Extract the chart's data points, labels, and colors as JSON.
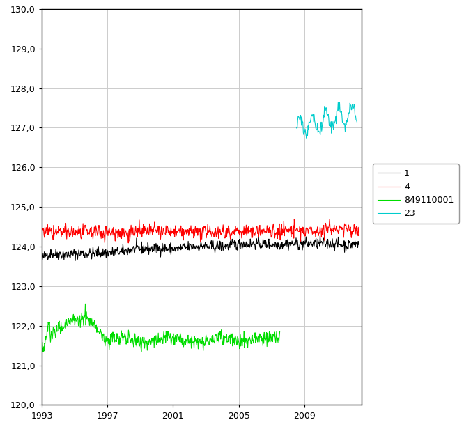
{
  "title": "",
  "xlabel": "",
  "ylabel": "",
  "ylim": [
    120.0,
    130.0
  ],
  "xlim_start": 1993.0,
  "xlim_end": 2012.5,
  "yticks": [
    120.0,
    121.0,
    122.0,
    123.0,
    124.0,
    125.0,
    126.0,
    127.0,
    128.0,
    129.0,
    130.0
  ],
  "xticks": [
    1993,
    1997,
    2001,
    2005,
    2009
  ],
  "grid_color": "#cccccc",
  "bg_color": "#ffffff",
  "series": [
    {
      "label": "1",
      "color": "#000000"
    },
    {
      "label": "4",
      "color": "#ff0000"
    },
    {
      "label": "849110001",
      "color": "#00dd00"
    },
    {
      "label": "23",
      "color": "#00cccc"
    }
  ]
}
